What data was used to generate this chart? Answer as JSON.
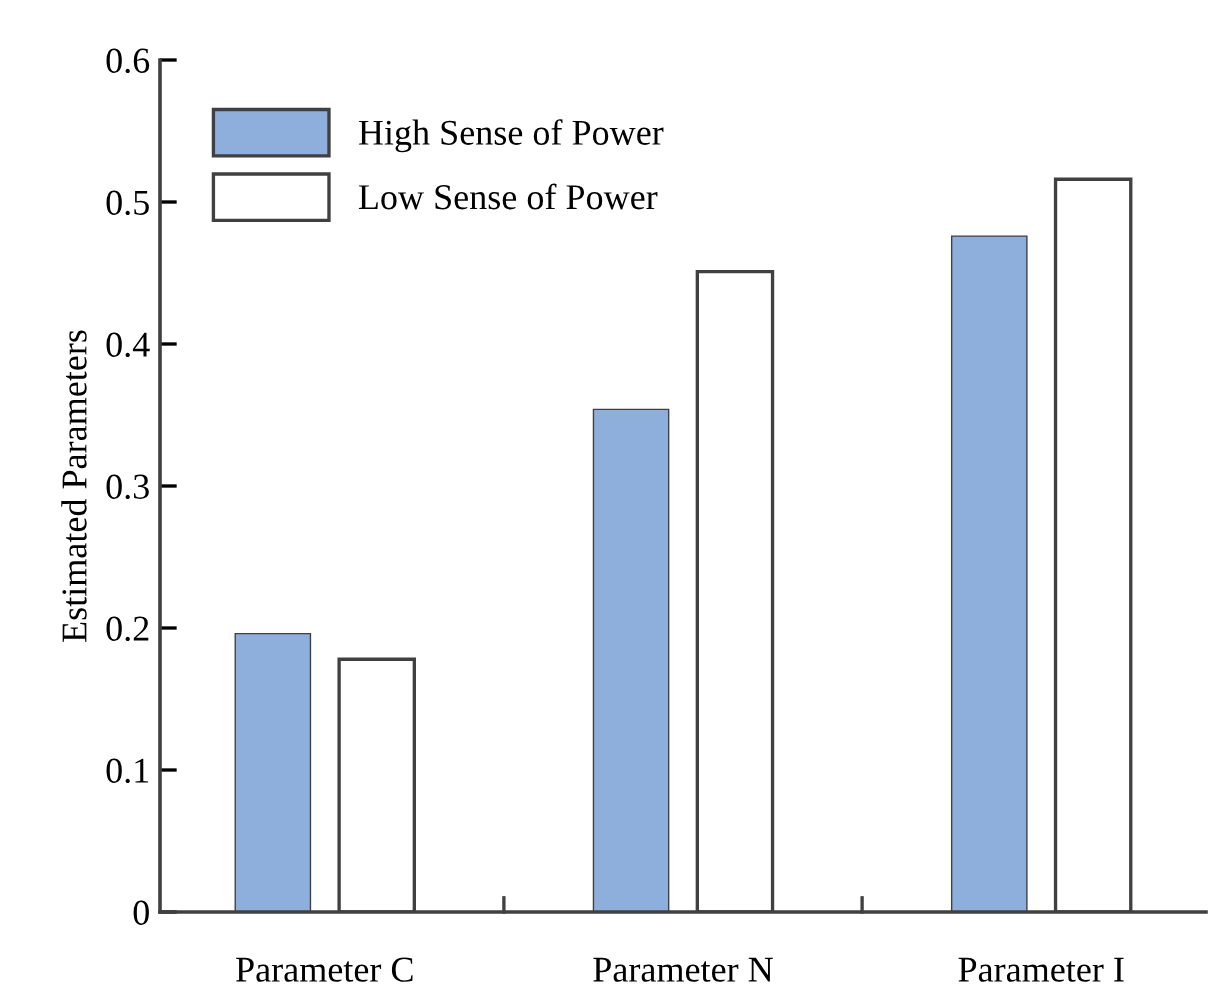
{
  "chart_data": {
    "type": "bar",
    "ylabel": "Estimated Parameters",
    "categories": [
      "Parameter C",
      "Parameter N",
      "Parameter I"
    ],
    "series": [
      {
        "name": "High Sense of Power",
        "color": "#8eaedb",
        "values": [
          0.196,
          0.354,
          0.476
        ]
      },
      {
        "name": "Low Sense of Power",
        "color": "#ffffff",
        "values": [
          0.178,
          0.451,
          0.516
        ]
      }
    ],
    "ylim": [
      0,
      0.6
    ],
    "yticks": [
      0,
      0.1,
      0.2,
      0.3,
      0.4,
      0.5,
      0.6
    ],
    "grid": false,
    "legend": "top left"
  }
}
